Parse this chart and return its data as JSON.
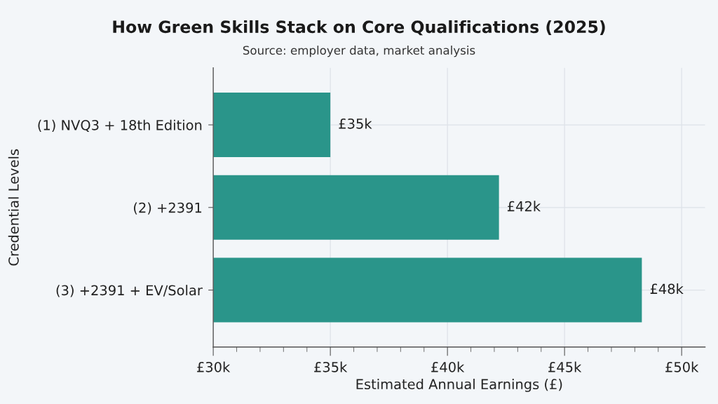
{
  "chart_data": {
    "type": "bar",
    "orientation": "horizontal",
    "title": "How Green Skills Stack on Core Qualifications (2025)",
    "subtitle": "Source: employer data, market analysis",
    "xlabel": "Estimated Annual Earnings (£)",
    "ylabel": "Credential Levels",
    "categories": [
      "(1) NVQ3 + 18th Edition",
      "(2) +2391",
      "(3) +2391 + EV/Solar"
    ],
    "values": [
      35,
      42.2,
      48.3
    ],
    "value_labels": [
      "£35k",
      "£42k",
      "£48k"
    ],
    "color": "#2a958a",
    "xlim": [
      30,
      51
    ],
    "xticks": [
      {
        "value": 30,
        "label": "£30k"
      },
      {
        "value": 31,
        "label": null
      },
      {
        "value": 32,
        "label": null
      },
      {
        "value": 33,
        "label": null
      },
      {
        "value": 34,
        "label": null
      },
      {
        "value": 35,
        "label": "£35k"
      },
      {
        "value": 36,
        "label": null
      },
      {
        "value": 37,
        "label": null
      },
      {
        "value": 38,
        "label": null
      },
      {
        "value": 39,
        "label": null
      },
      {
        "value": 40,
        "label": "£40k"
      },
      {
        "value": 41,
        "label": null
      },
      {
        "value": 42,
        "label": null
      },
      {
        "value": 43,
        "label": null
      },
      {
        "value": 44,
        "label": null
      },
      {
        "value": 45,
        "label": "£45k"
      },
      {
        "value": 46,
        "label": null
      },
      {
        "value": 47,
        "label": null
      },
      {
        "value": 48,
        "label": null
      },
      {
        "value": 49,
        "label": null
      },
      {
        "value": 50,
        "label": "£50k"
      }
    ],
    "grid": true
  }
}
